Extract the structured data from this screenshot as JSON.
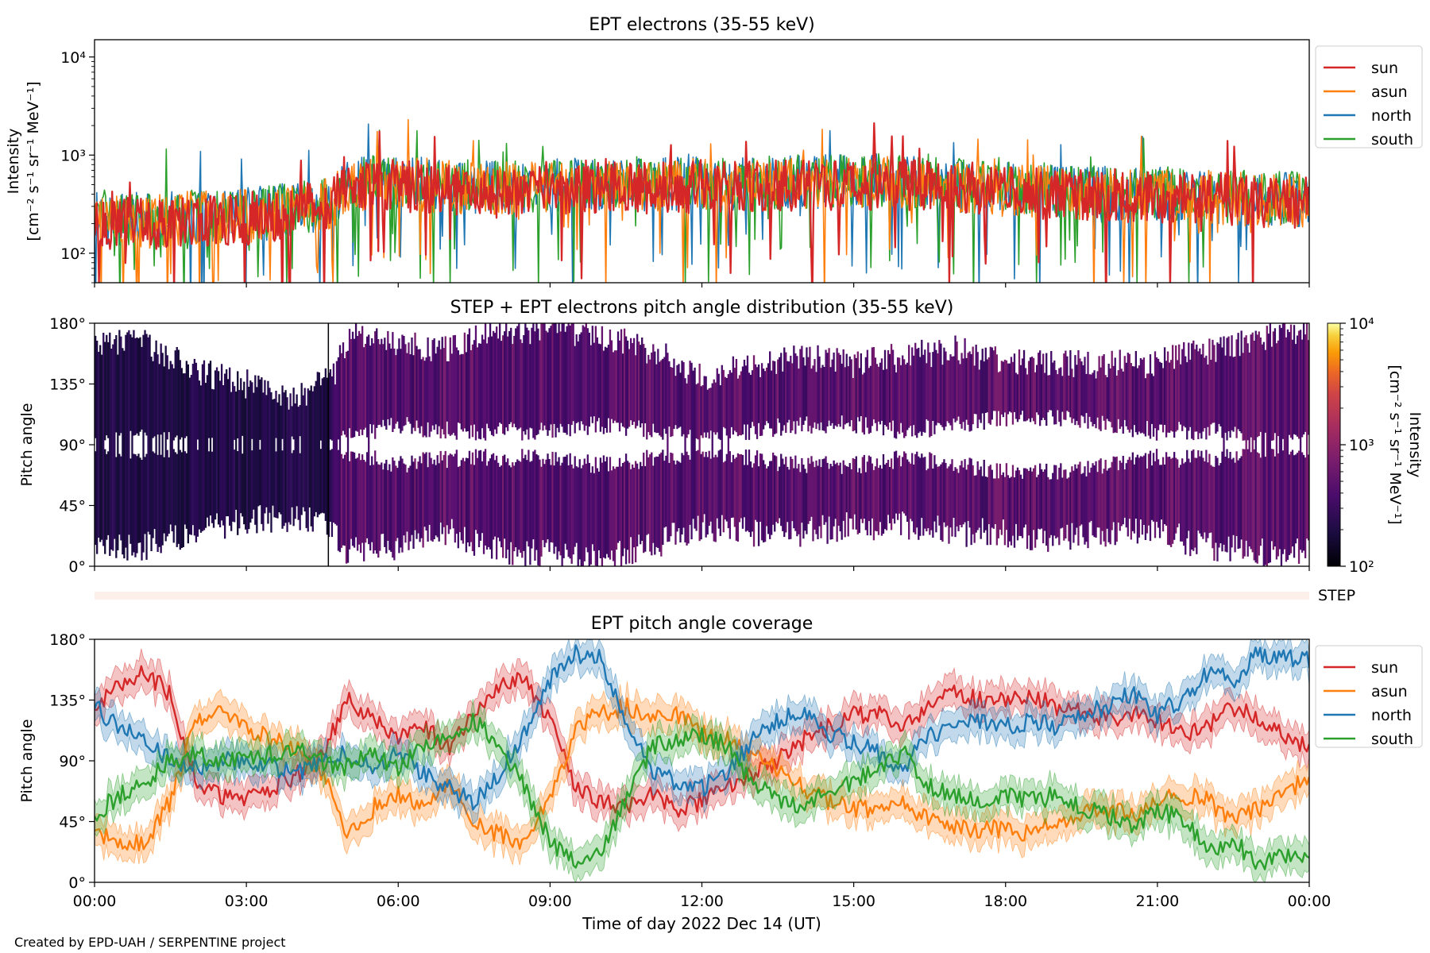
{
  "figure": {
    "credit": "Created by EPD-UAH / SERPENTINE project",
    "xlabel": "Time of day 2022 Dec 14 (UT)",
    "x_tick_labels": [
      "00:00",
      "03:00",
      "06:00",
      "09:00",
      "12:00",
      "15:00",
      "18:00",
      "21:00",
      "00:00"
    ]
  },
  "chart_data": [
    {
      "id": "intensity",
      "type": "line",
      "title": "EPT electrons (35-55 keV)",
      "ylabel_line1": "Intensity",
      "ylabel_line2": "[cm⁻² s⁻¹ sr⁻¹ MeV⁻¹]",
      "yscale": "log",
      "ylim": [
        50,
        15000
      ],
      "xlim_hours": [
        0,
        24
      ],
      "y_tick_labels": [
        "10²",
        "10³",
        "10⁴"
      ],
      "y_tick_values": [
        100,
        1000,
        10000
      ],
      "legend": "outside-right",
      "series": [
        {
          "name": "sun",
          "color": "#d62728",
          "x_hours": [
            0,
            1,
            2,
            3,
            4,
            4.7,
            5,
            6,
            7,
            8,
            9,
            10,
            11,
            12,
            13,
            14,
            15,
            16,
            17,
            18,
            19,
            20,
            21,
            22,
            23,
            24
          ],
          "typical": [
            200,
            200,
            220,
            230,
            260,
            320,
            480,
            500,
            460,
            430,
            460,
            480,
            470,
            480,
            470,
            500,
            520,
            520,
            470,
            430,
            410,
            390,
            380,
            360,
            340,
            330
          ]
        },
        {
          "name": "asun",
          "color": "#ff7f0e",
          "x_hours": [
            0,
            1,
            2,
            3,
            4,
            4.7,
            5,
            6,
            7,
            8,
            9,
            10,
            11,
            12,
            13,
            14,
            15,
            16,
            17,
            18,
            19,
            20,
            21,
            22,
            23,
            24
          ],
          "typical": [
            220,
            210,
            230,
            240,
            270,
            330,
            500,
            520,
            480,
            450,
            480,
            500,
            490,
            500,
            490,
            520,
            540,
            530,
            480,
            440,
            420,
            400,
            390,
            370,
            350,
            340
          ]
        },
        {
          "name": "north",
          "color": "#1f77b4",
          "x_hours": [
            0,
            1,
            2,
            3,
            4,
            4.7,
            5,
            6,
            7,
            8,
            9,
            10,
            11,
            12,
            13,
            14,
            15,
            16,
            17,
            18,
            19,
            20,
            21,
            22,
            23,
            24
          ],
          "typical": [
            230,
            220,
            240,
            250,
            280,
            340,
            510,
            530,
            490,
            460,
            490,
            510,
            500,
            510,
            500,
            530,
            550,
            540,
            490,
            450,
            430,
            410,
            400,
            380,
            360,
            350
          ]
        },
        {
          "name": "south",
          "color": "#2ca02c",
          "x_hours": [
            0,
            1,
            2,
            3,
            4,
            4.7,
            5,
            6,
            7,
            8,
            9,
            10,
            11,
            12,
            13,
            14,
            15,
            16,
            17,
            18,
            19,
            20,
            21,
            22,
            23,
            24
          ],
          "typical": [
            230,
            220,
            240,
            250,
            280,
            340,
            510,
            540,
            500,
            470,
            500,
            520,
            510,
            520,
            510,
            540,
            560,
            550,
            500,
            460,
            440,
            420,
            410,
            390,
            370,
            360
          ]
        }
      ]
    },
    {
      "id": "pad",
      "type": "heatmap",
      "title": "STEP + EPT electrons pitch angle distribution (35-55 keV)",
      "ylabel": "Pitch angle",
      "ylim": [
        0,
        180
      ],
      "xlim_hours": [
        0,
        24
      ],
      "y_tick_labels": [
        "0°",
        "45°",
        "90°",
        "135°",
        "180°"
      ],
      "y_tick_values": [
        0,
        45,
        90,
        135,
        180
      ],
      "colorbar": {
        "label_line1": "Intensity",
        "label_line2": "[cm⁻² s⁻¹ sr⁻¹ MeV⁻¹]",
        "scale": "log",
        "range": [
          100,
          10000
        ],
        "tick_labels": [
          "10²",
          "10³",
          "10⁴"
        ],
        "tick_values": [
          100,
          1000,
          10000
        ],
        "colormap": "inferno"
      },
      "coverage_hours": [
        0,
        1,
        2,
        3,
        4,
        4.7,
        5,
        6,
        7,
        8,
        9,
        10,
        11,
        12,
        13,
        14,
        15,
        16,
        17,
        18,
        19,
        20,
        21,
        22,
        23,
        24
      ],
      "coverage_low_deg": [
        15,
        15,
        25,
        35,
        35,
        30,
        10,
        15,
        25,
        10,
        10,
        5,
        15,
        30,
        25,
        25,
        30,
        30,
        25,
        25,
        20,
        25,
        25,
        15,
        10,
        10
      ],
      "coverage_high_deg": [
        165,
        165,
        145,
        135,
        125,
        140,
        170,
        165,
        160,
        175,
        175,
        170,
        160,
        140,
        150,
        155,
        150,
        155,
        160,
        150,
        150,
        150,
        150,
        160,
        170,
        175
      ],
      "gap_center_deg": [
        90,
        90,
        90,
        90,
        90,
        90,
        90,
        90,
        90,
        90,
        90,
        90,
        90,
        90,
        90,
        90,
        90,
        90,
        90,
        90,
        90,
        90,
        90,
        90,
        90,
        90
      ],
      "gap_halfwidth_deg": [
        0,
        5,
        0,
        0,
        0,
        0,
        5,
        15,
        10,
        10,
        10,
        15,
        10,
        5,
        10,
        15,
        15,
        10,
        15,
        20,
        20,
        15,
        10,
        10,
        5,
        5
      ]
    },
    {
      "id": "step",
      "type": "heatmap",
      "label": "STEP"
    },
    {
      "id": "coverage",
      "type": "line",
      "title": "EPT pitch angle coverage",
      "ylabel": "Pitch angle",
      "ylim": [
        0,
        180
      ],
      "xlim_hours": [
        0,
        24
      ],
      "y_tick_labels": [
        "0°",
        "45°",
        "90°",
        "135°",
        "180°"
      ],
      "y_tick_values": [
        0,
        45,
        90,
        135,
        180
      ],
      "legend": "outside-right",
      "series": [
        {
          "name": "sun",
          "color": "#d62728",
          "x_hours": [
            0,
            0.5,
            1,
            1.5,
            2,
            2.5,
            3,
            3.5,
            4,
            4.5,
            5,
            5.5,
            6,
            6.5,
            7,
            7.5,
            8,
            8.5,
            9,
            9.5,
            10,
            10.5,
            11,
            11.5,
            12,
            12.5,
            13,
            13.5,
            14,
            14.5,
            15,
            15.5,
            16,
            16.5,
            17,
            17.5,
            18,
            18.5,
            19,
            19.5,
            20,
            20.5,
            21,
            21.5,
            22,
            22.5,
            23,
            23.5,
            24
          ],
          "y_deg": [
            130,
            145,
            155,
            140,
            75,
            65,
            60,
            70,
            80,
            95,
            135,
            120,
            105,
            115,
            100,
            125,
            145,
            150,
            120,
            70,
            60,
            55,
            65,
            55,
            60,
            70,
            80,
            90,
            105,
            115,
            125,
            125,
            115,
            130,
            140,
            135,
            135,
            140,
            130,
            125,
            120,
            125,
            120,
            110,
            115,
            130,
            120,
            110,
            100
          ]
        },
        {
          "name": "asun",
          "color": "#ff7f0e",
          "x_hours": [
            0,
            0.5,
            1,
            1.5,
            2,
            2.5,
            3,
            3.5,
            4,
            4.5,
            5,
            5.5,
            6,
            6.5,
            7,
            7.5,
            8,
            8.5,
            9,
            9.5,
            10,
            10.5,
            11,
            11.5,
            12,
            12.5,
            13,
            13.5,
            14,
            14.5,
            15,
            15.5,
            16,
            16.5,
            17,
            17.5,
            18,
            18.5,
            19,
            19.5,
            20,
            20.5,
            21,
            21.5,
            22,
            22.5,
            23,
            23.5,
            24
          ],
          "y_deg": [
            40,
            25,
            30,
            60,
            120,
            125,
            115,
            105,
            100,
            80,
            35,
            55,
            65,
            55,
            75,
            45,
            35,
            30,
            60,
            115,
            125,
            130,
            120,
            125,
            110,
            105,
            95,
            85,
            70,
            60,
            55,
            55,
            60,
            45,
            40,
            40,
            40,
            35,
            45,
            50,
            55,
            50,
            60,
            65,
            60,
            45,
            55,
            65,
            80
          ]
        },
        {
          "name": "north",
          "color": "#1f77b4",
          "x_hours": [
            0,
            0.5,
            1,
            1.5,
            2,
            2.5,
            3,
            3.5,
            4,
            4.5,
            5,
            5.5,
            6,
            6.5,
            7,
            7.5,
            8,
            8.5,
            9,
            9.5,
            10,
            10.5,
            11,
            11.5,
            12,
            12.5,
            13,
            13.5,
            14,
            14.5,
            15,
            15.5,
            16,
            16.5,
            17,
            17.5,
            18,
            18.5,
            19,
            19.5,
            20,
            20.5,
            21,
            21.5,
            22,
            22.5,
            23,
            23.5,
            24
          ],
          "y_deg": [
            130,
            115,
            105,
            90,
            85,
            90,
            90,
            85,
            80,
            90,
            95,
            85,
            95,
            80,
            70,
            60,
            80,
            110,
            150,
            170,
            165,
            120,
            80,
            75,
            70,
            80,
            105,
            120,
            125,
            110,
            105,
            95,
            85,
            110,
            115,
            120,
            115,
            120,
            115,
            125,
            130,
            140,
            125,
            135,
            155,
            150,
            170,
            165,
            165
          ]
        },
        {
          "name": "south",
          "color": "#2ca02c",
          "x_hours": [
            0,
            0.5,
            1,
            1.5,
            2,
            2.5,
            3,
            3.5,
            4,
            4.5,
            5,
            5.5,
            6,
            6.5,
            7,
            7.5,
            8,
            8.5,
            9,
            9.5,
            10,
            10.5,
            11,
            11.5,
            12,
            12.5,
            13,
            13.5,
            14,
            14.5,
            15,
            15.5,
            16,
            16.5,
            17,
            17.5,
            18,
            18.5,
            19,
            19.5,
            20,
            20.5,
            21,
            21.5,
            22,
            22.5,
            23,
            23.5,
            24
          ],
          "y_deg": [
            50,
            65,
            75,
            90,
            95,
            90,
            90,
            95,
            100,
            90,
            85,
            95,
            85,
            100,
            110,
            120,
            100,
            70,
            30,
            15,
            20,
            60,
            100,
            105,
            110,
            100,
            75,
            60,
            55,
            70,
            75,
            85,
            95,
            70,
            65,
            60,
            65,
            60,
            65,
            55,
            50,
            40,
            55,
            45,
            25,
            30,
            15,
            20,
            15
          ]
        }
      ]
    }
  ]
}
